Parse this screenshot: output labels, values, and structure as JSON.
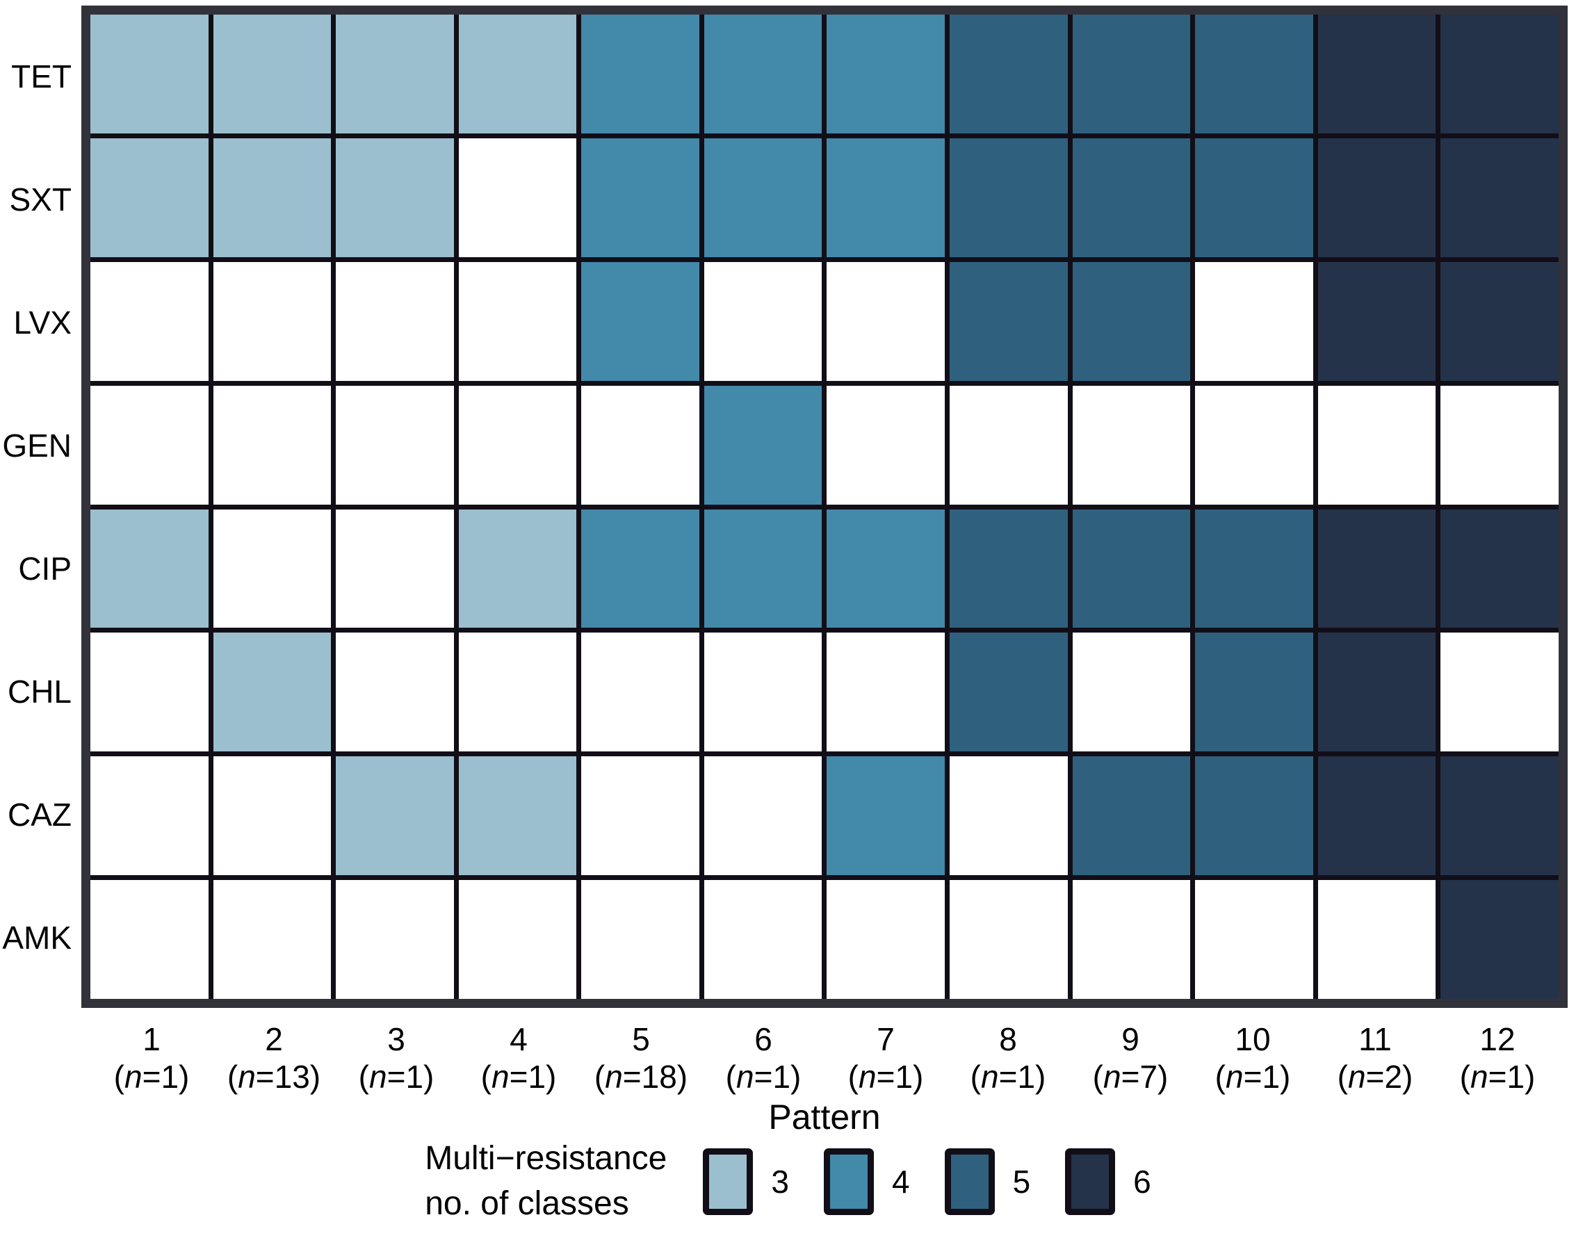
{
  "chart_data": {
    "type": "heatmap",
    "title": "",
    "xlabel": "Pattern",
    "ylabel": "",
    "rows": [
      "TET",
      "SXT",
      "LVX",
      "GEN",
      "CIP",
      "CHL",
      "CAZ",
      "AMK"
    ],
    "columns": [
      {
        "pattern": "1",
        "n": "1"
      },
      {
        "pattern": "2",
        "n": "13"
      },
      {
        "pattern": "3",
        "n": "1"
      },
      {
        "pattern": "4",
        "n": "1"
      },
      {
        "pattern": "5",
        "n": "18"
      },
      {
        "pattern": "6",
        "n": "1"
      },
      {
        "pattern": "7",
        "n": "1"
      },
      {
        "pattern": "8",
        "n": "1"
      },
      {
        "pattern": "9",
        "n": "7"
      },
      {
        "pattern": "10",
        "n": "1"
      },
      {
        "pattern": "11",
        "n": "2"
      },
      {
        "pattern": "12",
        "n": "1"
      }
    ],
    "matrix": [
      [
        3,
        3,
        3,
        3,
        4,
        4,
        4,
        5,
        5,
        5,
        6,
        6
      ],
      [
        3,
        3,
        3,
        0,
        4,
        4,
        4,
        5,
        5,
        5,
        6,
        6
      ],
      [
        0,
        0,
        0,
        0,
        4,
        0,
        0,
        5,
        5,
        0,
        6,
        6
      ],
      [
        0,
        0,
        0,
        0,
        0,
        4,
        0,
        0,
        0,
        0,
        0,
        0
      ],
      [
        3,
        0,
        0,
        3,
        4,
        4,
        4,
        5,
        5,
        5,
        6,
        6
      ],
      [
        0,
        3,
        0,
        0,
        0,
        0,
        0,
        5,
        0,
        5,
        6,
        0
      ],
      [
        0,
        0,
        3,
        3,
        0,
        0,
        4,
        0,
        5,
        5,
        6,
        6
      ],
      [
        0,
        0,
        0,
        0,
        0,
        0,
        0,
        0,
        0,
        0,
        0,
        6
      ]
    ],
    "legend": {
      "title_line1": "Multi−resistance",
      "title_line2": "no. of classes",
      "classes": [
        {
          "label": "3",
          "color": "#9bbfce"
        },
        {
          "label": "4",
          "color": "#4389a9"
        },
        {
          "label": "5",
          "color": "#2f617f"
        },
        {
          "label": "6",
          "color": "#243349"
        }
      ]
    },
    "colors": {
      "empty": "#ffffff",
      "gridline": "#120e17",
      "frame": "#32323b"
    },
    "layout": {
      "grid": "on",
      "legend_position": "bottom"
    }
  }
}
